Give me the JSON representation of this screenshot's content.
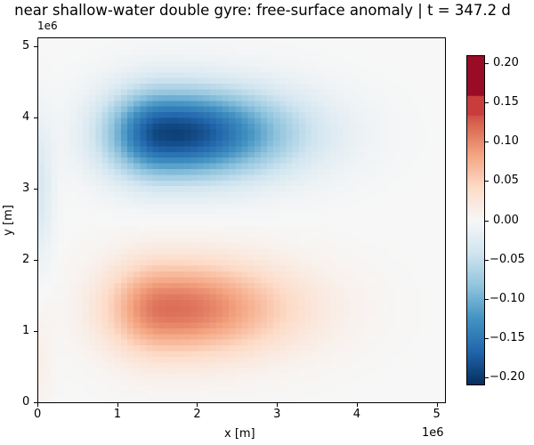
{
  "chart_data": {
    "type": "heatmap",
    "title": "near shallow-water double gyre: free-surface anomaly | t = 347.2 d",
    "xlabel": "x [m]",
    "ylabel": "y [m]",
    "x_offset_label": "1e6",
    "y_offset_label": "1e6",
    "xlim": [
      0,
      5120000
    ],
    "ylim": [
      0,
      5120000
    ],
    "x_ticks": [
      0,
      1,
      2,
      3,
      4,
      5
    ],
    "y_ticks": [
      0,
      1,
      2,
      3,
      4,
      5
    ],
    "grid": false,
    "grid_cells": [
      64,
      64
    ],
    "colormap": "RdBu_r",
    "colorbar": {
      "vmin": -0.21,
      "vmax": 0.21,
      "ticks": [
        "0.20",
        "0.15",
        "0.10",
        "0.05",
        "0.00",
        "−0.05",
        "−0.10",
        "−0.15",
        "−0.20"
      ],
      "tick_values": [
        0.2,
        0.15,
        0.1,
        0.05,
        0.0,
        -0.05,
        -0.1,
        -0.15,
        -0.2
      ],
      "over_band_color": "#9a0c26",
      "upper_band_color": "#c93c3c"
    },
    "features": [
      {
        "name": "northern cyclonic gyre (negative anomaly)",
        "center_x_1e6": 1.55,
        "center_y_1e6": 3.8,
        "peak_value": -0.21
      },
      {
        "name": "southern anticyclonic gyre (positive anomaly)",
        "center_x_1e6": 1.6,
        "center_y_1e6": 1.3,
        "peak_value": 0.12
      }
    ],
    "value_range_shown": [
      -0.21,
      0.21
    ]
  }
}
